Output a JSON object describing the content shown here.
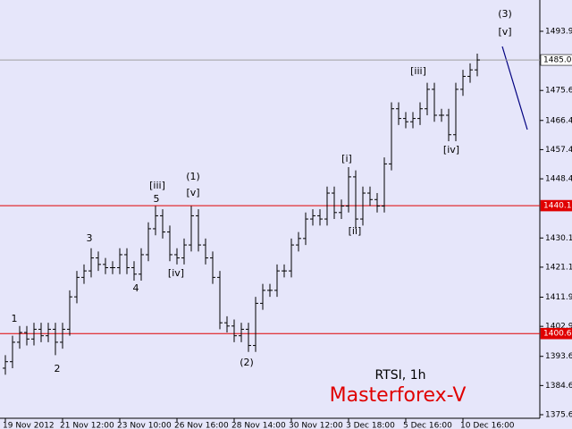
{
  "chart_data": {
    "type": "ohlc",
    "title": "RTSI, 1h",
    "watermark": "Masterforex-V",
    "color": "#000000",
    "categories": [
      "19 Nov 2012",
      null,
      null,
      null,
      null,
      null,
      null,
      null,
      "21 Nov 12:00",
      null,
      null,
      null,
      null,
      null,
      null,
      null,
      "23 Nov 10:00",
      null,
      null,
      null,
      null,
      null,
      null,
      null,
      "26 Nov 16:00",
      null,
      null,
      null,
      null,
      null,
      null,
      null,
      "28 Nov 14:00",
      null,
      null,
      null,
      null,
      null,
      null,
      null,
      "30 Nov 12:00",
      null,
      null,
      null,
      null,
      null,
      null,
      null,
      "3 Dec 18:00",
      null,
      null,
      null,
      null,
      null,
      null,
      null,
      "5 Dec 16:00",
      null,
      null,
      null,
      null,
      null,
      null,
      null,
      "10 Dec 16:00",
      null,
      null
    ],
    "open": [
      1390,
      1392,
      1398,
      1401,
      1399,
      1402,
      1400,
      1402,
      1398,
      1402,
      1412,
      1418,
      1420,
      1424,
      1422,
      1421,
      1421,
      1425,
      1421,
      1419,
      1425,
      1433,
      1437,
      1432,
      1425,
      1424,
      1428,
      1437,
      1428,
      1424,
      1418,
      1404,
      1403,
      1400,
      1402,
      1397,
      1410,
      1414,
      1414,
      1420,
      1420,
      1428,
      1430,
      1436,
      1437,
      1436,
      1444,
      1438,
      1440,
      1449,
      1436,
      1444,
      1442,
      1440,
      1453,
      1470,
      1467,
      1466,
      1467,
      1470,
      1476,
      1468,
      1468,
      1462,
      1476,
      1480,
      1482
    ],
    "high": [
      1394,
      1400,
      1403,
      1403,
      1404,
      1404,
      1404,
      1404,
      1404,
      1414,
      1420,
      1422,
      1427,
      1426,
      1424,
      1423,
      1427,
      1427,
      1423,
      1427,
      1435,
      1440,
      1439,
      1434,
      1427,
      1430,
      1440,
      1439,
      1430,
      1426,
      1420,
      1406,
      1405,
      1404,
      1404,
      1412,
      1416,
      1416,
      1422,
      1422,
      1430,
      1432,
      1438,
      1439,
      1439,
      1446,
      1446,
      1442,
      1452,
      1451,
      1446,
      1446,
      1444,
      1455,
      1472,
      1472,
      1469,
      1469,
      1472,
      1478,
      1478,
      1470,
      1470,
      1478,
      1482,
      1484,
      1487
    ],
    "low": [
      1388,
      1390,
      1396,
      1397,
      1397,
      1398,
      1398,
      1394,
      1396,
      1400,
      1410,
      1416,
      1418,
      1420,
      1419,
      1419,
      1419,
      1419,
      1417,
      1417,
      1423,
      1431,
      1430,
      1423,
      1422,
      1422,
      1426,
      1426,
      1422,
      1416,
      1402,
      1401,
      1398,
      1398,
      1395,
      1395,
      1408,
      1412,
      1412,
      1418,
      1418,
      1426,
      1428,
      1434,
      1434,
      1434,
      1436,
      1436,
      1438,
      1433,
      1434,
      1440,
      1438,
      1438,
      1451,
      1465,
      1464,
      1464,
      1465,
      1468,
      1466,
      1466,
      1460,
      1460,
      1474,
      1478,
      1480
    ],
    "close": [
      1392,
      1398,
      1401,
      1399,
      1402,
      1400,
      1402,
      1398,
      1402,
      1412,
      1418,
      1420,
      1424,
      1422,
      1421,
      1421,
      1425,
      1421,
      1419,
      1425,
      1433,
      1437,
      1432,
      1425,
      1424,
      1428,
      1437,
      1428,
      1424,
      1418,
      1404,
      1403,
      1400,
      1402,
      1397,
      1410,
      1414,
      1414,
      1420,
      1420,
      1428,
      1430,
      1436,
      1437,
      1436,
      1444,
      1438,
      1440,
      1449,
      1436,
      1444,
      1442,
      1440,
      1453,
      1470,
      1467,
      1466,
      1467,
      1470,
      1476,
      1468,
      1468,
      1462,
      1476,
      1480,
      1482,
      1485.06
    ],
    "ylim": [
      1374.55,
      1502.72
    ],
    "yticks": [
      {
        "value": 1493.9,
        "label": "1493.90"
      },
      1475.65,
      {
        "value": 1466.4,
        "label": "1466.40"
      },
      {
        "value": 1457.4,
        "label": "1457.40"
      },
      {
        "value": 1448.4,
        "label": "1448.40"
      },
      1430.15,
      1421.15,
      {
        "value": 1411.9,
        "label": "1411.90"
      },
      {
        "value": 1402.9,
        "label": "1402.90"
      },
      1393.65,
      1384.65,
      1375.65
    ],
    "hlines": [
      {
        "value": 1485.06,
        "color": "#a0a0a0"
      },
      {
        "value": 1440.13,
        "color": "#e00000"
      },
      {
        "value": 1400.68,
        "color": "#e00000"
      }
    ],
    "annotations": [
      "1",
      "2",
      "3",
      "4",
      "5",
      "[iii]",
      "(1)",
      "[v]",
      "[iv]",
      "(2)",
      "[i]",
      "[ii]",
      "[iii]",
      "[iv]",
      "(3)",
      "[v]"
    ]
  }
}
